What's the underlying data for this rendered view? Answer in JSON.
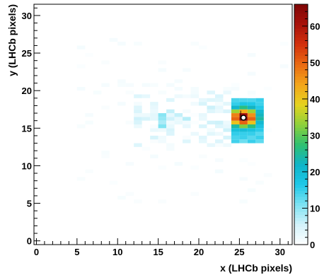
{
  "chart_data": {
    "type": "heatmap",
    "title": "",
    "xlabel": "x (LHCb pixels)",
    "ylabel": "y (LHCb pixels)",
    "xlim": [
      -0.3,
      31.5
    ],
    "ylim": [
      -0.5,
      31.5
    ],
    "x_ticks": [
      0,
      5,
      10,
      15,
      20,
      25,
      30
    ],
    "y_ticks": [
      0,
      5,
      10,
      15,
      20,
      25,
      30
    ],
    "colorbar": {
      "range": [
        0,
        66
      ],
      "ticks": [
        0,
        10,
        20,
        30,
        40,
        50,
        60
      ],
      "palette": [
        "#ffffff",
        "#d4f3fb",
        "#7ee3f2",
        "#1ec8e8",
        "#10b4c8",
        "#2fc070",
        "#8ed13a",
        "#e6d21e",
        "#f3a51a",
        "#ea6a12",
        "#d3300c",
        "#a8110a",
        "#7f0606"
      ]
    },
    "marker": {
      "x": 25.5,
      "y": 16.4,
      "shape": "open-circle",
      "color": "#000000"
    },
    "hot_region": {
      "x_range": [
        24,
        28.5
      ],
      "y_range": [
        13,
        19
      ],
      "peak": {
        "x": 25.5,
        "y": 16.4,
        "value": 66
      }
    },
    "warm_region": {
      "x_range": [
        12,
        24
      ],
      "y_range": [
        12.5,
        20.5
      ],
      "typical_value": 6
    },
    "halo_region": {
      "x_range": [
        5,
        31
      ],
      "y_range": [
        4,
        27
      ],
      "typical_value": 1
    },
    "grid": false,
    "legend": "none"
  }
}
